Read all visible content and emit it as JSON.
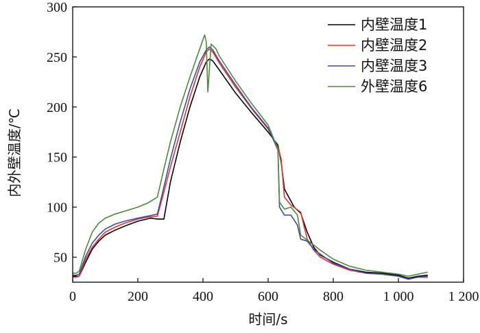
{
  "chart_data": {
    "type": "line",
    "xlabel": "时间/s",
    "ylabel": "内外壁温度/℃",
    "xlim": [
      0,
      1200
    ],
    "ylim": [
      25,
      300
    ],
    "xticks": [
      0,
      200,
      400,
      600,
      800,
      1000,
      1200
    ],
    "xtick_labels": [
      "0",
      "200",
      "400",
      "600",
      "800",
      "1 000",
      "1 200"
    ],
    "yticks": [
      50,
      100,
      150,
      200,
      250,
      300
    ],
    "ytick_labels": [
      "50",
      "100",
      "150",
      "200",
      "250",
      "300"
    ],
    "grid": false,
    "legend_position": "top-right",
    "series": [
      {
        "name": "内壁温度1",
        "color": "#000000",
        "points": [
          [
            0,
            31
          ],
          [
            10,
            31
          ],
          [
            20,
            31
          ],
          [
            40,
            45
          ],
          [
            60,
            58
          ],
          [
            80,
            66
          ],
          [
            100,
            72
          ],
          [
            130,
            77
          ],
          [
            160,
            81
          ],
          [
            200,
            86
          ],
          [
            240,
            89
          ],
          [
            260,
            88
          ],
          [
            280,
            88
          ],
          [
            300,
            125
          ],
          [
            330,
            165
          ],
          [
            360,
            200
          ],
          [
            390,
            230
          ],
          [
            410,
            245
          ],
          [
            420,
            248
          ],
          [
            430,
            246
          ],
          [
            450,
            237
          ],
          [
            500,
            214
          ],
          [
            550,
            194
          ],
          [
            600,
            175
          ],
          [
            630,
            162
          ],
          [
            640,
            145
          ],
          [
            650,
            118
          ],
          [
            680,
            100
          ],
          [
            700,
            94
          ],
          [
            720,
            75
          ],
          [
            740,
            60
          ],
          [
            760,
            52
          ],
          [
            800,
            45
          ],
          [
            850,
            38
          ],
          [
            900,
            35
          ],
          [
            950,
            34
          ],
          [
            1000,
            32
          ],
          [
            1030,
            29
          ],
          [
            1060,
            31
          ],
          [
            1090,
            32
          ]
        ]
      },
      {
        "name": "内壁温度2",
        "color": "#e8302b",
        "points": [
          [
            0,
            30
          ],
          [
            10,
            30
          ],
          [
            20,
            31
          ],
          [
            40,
            48
          ],
          [
            60,
            60
          ],
          [
            80,
            68
          ],
          [
            100,
            75
          ],
          [
            130,
            80
          ],
          [
            160,
            84
          ],
          [
            200,
            88
          ],
          [
            230,
            90
          ],
          [
            260,
            91
          ],
          [
            280,
            115
          ],
          [
            300,
            140
          ],
          [
            330,
            175
          ],
          [
            360,
            210
          ],
          [
            390,
            240
          ],
          [
            410,
            255
          ],
          [
            420,
            258
          ],
          [
            430,
            255
          ],
          [
            450,
            244
          ],
          [
            500,
            220
          ],
          [
            550,
            198
          ],
          [
            600,
            178
          ],
          [
            630,
            160
          ],
          [
            640,
            148
          ],
          [
            650,
            110
          ],
          [
            670,
            102
          ],
          [
            700,
            95
          ],
          [
            720,
            68
          ],
          [
            740,
            57
          ],
          [
            760,
            50
          ],
          [
            800,
            43
          ],
          [
            850,
            37
          ],
          [
            900,
            34
          ],
          [
            950,
            33
          ],
          [
            1000,
            31
          ],
          [
            1030,
            28
          ],
          [
            1060,
            30
          ],
          [
            1090,
            30
          ]
        ]
      },
      {
        "name": "内壁温度3",
        "color": "#3e4aa8",
        "points": [
          [
            0,
            32
          ],
          [
            10,
            32
          ],
          [
            20,
            33
          ],
          [
            40,
            51
          ],
          [
            60,
            64
          ],
          [
            80,
            72
          ],
          [
            100,
            78
          ],
          [
            130,
            83
          ],
          [
            160,
            86
          ],
          [
            200,
            89
          ],
          [
            230,
            91
          ],
          [
            260,
            93
          ],
          [
            280,
            120
          ],
          [
            300,
            148
          ],
          [
            330,
            185
          ],
          [
            360,
            218
          ],
          [
            390,
            245
          ],
          [
            410,
            257
          ],
          [
            420,
            260
          ],
          [
            430,
            257
          ],
          [
            450,
            246
          ],
          [
            500,
            222
          ],
          [
            550,
            199
          ],
          [
            600,
            179
          ],
          [
            630,
            157
          ],
          [
            635,
            100
          ],
          [
            650,
            92
          ],
          [
            670,
            92
          ],
          [
            690,
            82
          ],
          [
            700,
            68
          ],
          [
            720,
            66
          ],
          [
            740,
            58
          ],
          [
            760,
            53
          ],
          [
            800,
            44
          ],
          [
            850,
            38
          ],
          [
            900,
            34
          ],
          [
            950,
            33
          ],
          [
            1000,
            31
          ],
          [
            1030,
            28
          ],
          [
            1060,
            30
          ],
          [
            1090,
            31
          ]
        ]
      },
      {
        "name": "外壁温度6",
        "color": "#4a8a3a",
        "points": [
          [
            0,
            34
          ],
          [
            10,
            34
          ],
          [
            20,
            36
          ],
          [
            40,
            58
          ],
          [
            60,
            75
          ],
          [
            80,
            84
          ],
          [
            100,
            89
          ],
          [
            130,
            93
          ],
          [
            160,
            96
          ],
          [
            200,
            100
          ],
          [
            230,
            104
          ],
          [
            260,
            110
          ],
          [
            280,
            138
          ],
          [
            300,
            165
          ],
          [
            330,
            200
          ],
          [
            360,
            230
          ],
          [
            390,
            258
          ],
          [
            405,
            272
          ],
          [
            410,
            265
          ],
          [
            415,
            215
          ],
          [
            425,
            263
          ],
          [
            440,
            258
          ],
          [
            450,
            251
          ],
          [
            500,
            226
          ],
          [
            550,
            203
          ],
          [
            600,
            182
          ],
          [
            630,
            158
          ],
          [
            635,
            105
          ],
          [
            650,
            98
          ],
          [
            670,
            100
          ],
          [
            690,
            92
          ],
          [
            700,
            72
          ],
          [
            720,
            67
          ],
          [
            740,
            62
          ],
          [
            760,
            57
          ],
          [
            800,
            48
          ],
          [
            850,
            41
          ],
          [
            900,
            37
          ],
          [
            950,
            35
          ],
          [
            1000,
            33
          ],
          [
            1030,
            31
          ],
          [
            1060,
            33
          ],
          [
            1090,
            35
          ]
        ]
      }
    ]
  }
}
